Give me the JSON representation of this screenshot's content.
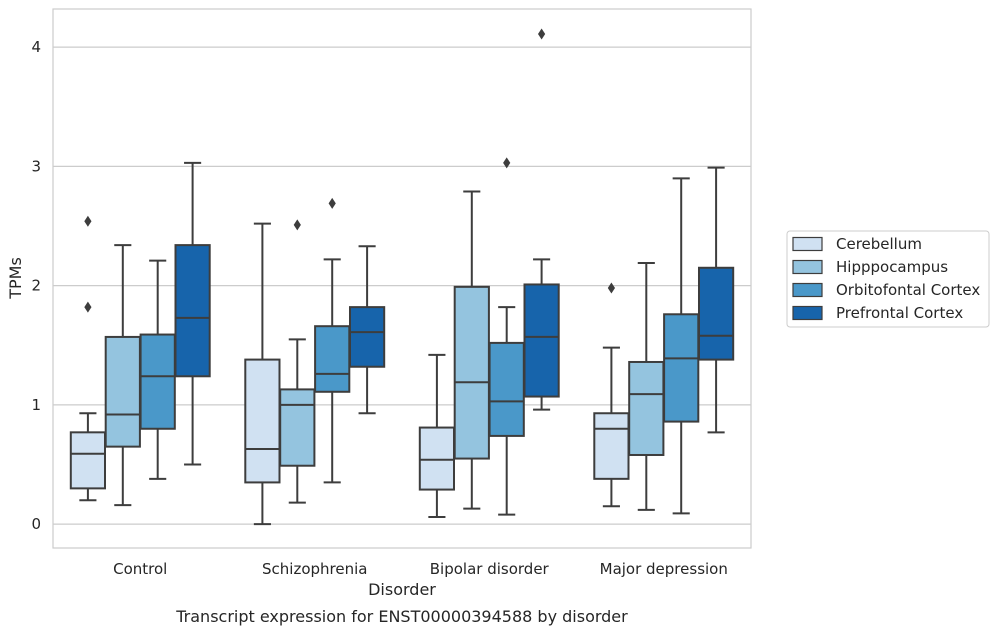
{
  "chart_data": {
    "type": "box",
    "title": "",
    "caption": "Transcript expression for ENST00000394588 by disorder",
    "xlabel": "Disorder",
    "ylabel": "TPMs",
    "ylim": [
      -0.2,
      4.32
    ],
    "yticks": [
      0,
      1,
      2,
      3,
      4
    ],
    "grid": "horizontal",
    "legend_position": "right",
    "categories": [
      "Control",
      "Schizophrenia",
      "Bipolar disorder",
      "Major depression"
    ],
    "series": [
      {
        "name": "Cerebellum",
        "color": "#d0e1f2",
        "boxes": [
          {
            "whislo": 0.2,
            "q1": 0.3,
            "med": 0.59,
            "q3": 0.77,
            "whishi": 0.93,
            "fliers": [
              2.54,
              1.82
            ]
          },
          {
            "whislo": 0.0,
            "q1": 0.35,
            "med": 0.63,
            "q3": 1.38,
            "whishi": 2.52,
            "fliers": []
          },
          {
            "whislo": 0.06,
            "q1": 0.29,
            "med": 0.54,
            "q3": 0.81,
            "whishi": 1.42,
            "fliers": []
          },
          {
            "whislo": 0.15,
            "q1": 0.38,
            "med": 0.8,
            "q3": 0.93,
            "whishi": 1.48,
            "fliers": [
              1.98
            ]
          }
        ]
      },
      {
        "name": "Hipppocampus",
        "color": "#94c4df",
        "boxes": [
          {
            "whislo": 0.16,
            "q1": 0.65,
            "med": 0.92,
            "q3": 1.57,
            "whishi": 2.34,
            "fliers": []
          },
          {
            "whislo": 0.18,
            "q1": 0.49,
            "med": 1.0,
            "q3": 1.13,
            "whishi": 1.55,
            "fliers": [
              2.51
            ]
          },
          {
            "whislo": 0.13,
            "q1": 0.55,
            "med": 1.19,
            "q3": 1.99,
            "whishi": 2.79,
            "fliers": []
          },
          {
            "whislo": 0.12,
            "q1": 0.58,
            "med": 1.09,
            "q3": 1.36,
            "whishi": 2.19,
            "fliers": []
          }
        ]
      },
      {
        "name": "Orbitofontal Cortex",
        "color": "#4a98c9",
        "boxes": [
          {
            "whislo": 0.38,
            "q1": 0.8,
            "med": 1.24,
            "q3": 1.59,
            "whishi": 2.21,
            "fliers": []
          },
          {
            "whislo": 0.35,
            "q1": 1.11,
            "med": 1.26,
            "q3": 1.66,
            "whishi": 2.22,
            "fliers": [
              2.69
            ]
          },
          {
            "whislo": 0.08,
            "q1": 0.74,
            "med": 1.03,
            "q3": 1.52,
            "whishi": 1.82,
            "fliers": [
              3.03
            ]
          },
          {
            "whislo": 0.09,
            "q1": 0.86,
            "med": 1.39,
            "q3": 1.76,
            "whishi": 2.9,
            "fliers": []
          }
        ]
      },
      {
        "name": "Prefrontal Cortex",
        "color": "#1764ab",
        "boxes": [
          {
            "whislo": 0.5,
            "q1": 1.24,
            "med": 1.73,
            "q3": 2.34,
            "whishi": 3.03,
            "fliers": []
          },
          {
            "whislo": 0.93,
            "q1": 1.32,
            "med": 1.61,
            "q3": 1.82,
            "whishi": 2.33,
            "fliers": []
          },
          {
            "whislo": 0.96,
            "q1": 1.07,
            "med": 1.57,
            "q3": 2.01,
            "whishi": 2.22,
            "fliers": [
              4.11
            ]
          },
          {
            "whislo": 0.77,
            "q1": 1.38,
            "med": 1.58,
            "q3": 2.15,
            "whishi": 2.99,
            "fliers": []
          }
        ]
      }
    ]
  }
}
